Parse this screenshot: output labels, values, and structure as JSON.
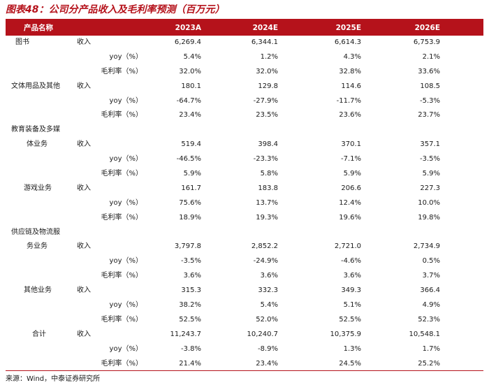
{
  "title": "图表48：公司分产品收入及毛利率预测（百万元）",
  "source": "来源：Wind，中泰证券研究所",
  "header": {
    "name": "产品名称",
    "years": [
      "2023A",
      "2024E",
      "2025E",
      "2026E"
    ]
  },
  "rows": [
    {
      "product": "图书",
      "metric": "收入",
      "values": [
        "6,269.4",
        "6,344.1",
        "6,614.3",
        "6,753.9"
      ]
    },
    {
      "product": "",
      "metric": "yoy（%）",
      "values": [
        "5.4%",
        "1.2%",
        "4.3%",
        "2.1%"
      ]
    },
    {
      "product": "",
      "metric": "毛利率（%）",
      "values": [
        "32.0%",
        "32.0%",
        "32.8%",
        "33.6%"
      ]
    },
    {
      "product": "文体用品及其他",
      "metric": "收入",
      "values": [
        "180.1",
        "129.8",
        "114.6",
        "108.5"
      ]
    },
    {
      "product": "",
      "metric": "yoy（%）",
      "values": [
        "-64.7%",
        "-27.9%",
        "-11.7%",
        "-5.3%"
      ]
    },
    {
      "product": "",
      "metric": "毛利率（%）",
      "values": [
        "23.4%",
        "23.5%",
        "23.6%",
        "23.7%"
      ]
    },
    {
      "product": "教育装备及多媒",
      "metric": "",
      "values": [
        "",
        "",
        "",
        ""
      ]
    },
    {
      "product": "体业务",
      "metric": "收入",
      "values": [
        "519.4",
        "398.4",
        "370.1",
        "357.1"
      ]
    },
    {
      "product": "",
      "metric": "yoy（%）",
      "values": [
        "-46.5%",
        "-23.3%",
        "-7.1%",
        "-3.5%"
      ]
    },
    {
      "product": "",
      "metric": "毛利率（%）",
      "values": [
        "5.9%",
        "5.8%",
        "5.9%",
        "5.9%"
      ]
    },
    {
      "product": "游戏业务",
      "metric": "收入",
      "values": [
        "161.7",
        "183.8",
        "206.6",
        "227.3"
      ]
    },
    {
      "product": "",
      "metric": "yoy（%）",
      "values": [
        "75.6%",
        "13.7%",
        "12.4%",
        "10.0%"
      ]
    },
    {
      "product": "",
      "metric": "毛利率（%）",
      "values": [
        "18.9%",
        "19.3%",
        "19.6%",
        "19.8%"
      ]
    },
    {
      "product": "供应链及物流服",
      "metric": "",
      "values": [
        "",
        "",
        "",
        ""
      ]
    },
    {
      "product": "务业务",
      "metric": "收入",
      "values": [
        "3,797.8",
        "2,852.2",
        "2,721.0",
        "2,734.9"
      ]
    },
    {
      "product": "",
      "metric": "yoy（%）",
      "values": [
        "-3.5%",
        "-24.9%",
        "-4.6%",
        "0.5%"
      ]
    },
    {
      "product": "",
      "metric": "毛利率（%）",
      "values": [
        "3.6%",
        "3.6%",
        "3.6%",
        "3.7%"
      ]
    },
    {
      "product": "其他业务",
      "metric": "收入",
      "values": [
        "315.3",
        "332.3",
        "349.3",
        "366.4"
      ]
    },
    {
      "product": "",
      "metric": "yoy（%）",
      "values": [
        "38.2%",
        "5.4%",
        "5.1%",
        "4.9%"
      ]
    },
    {
      "product": "",
      "metric": "毛利率（%）",
      "values": [
        "52.5%",
        "52.0%",
        "52.5%",
        "52.3%"
      ]
    },
    {
      "product": "合计",
      "metric": "收入",
      "values": [
        "11,243.7",
        "10,240.7",
        "10,375.9",
        "10,548.1"
      ]
    },
    {
      "product": "",
      "metric": "yoy（%）",
      "values": [
        "-3.8%",
        "-8.9%",
        "1.3%",
        "1.7%"
      ]
    },
    {
      "product": "",
      "metric": "毛利率（%）",
      "values": [
        "21.4%",
        "23.4%",
        "24.5%",
        "25.2%"
      ]
    }
  ]
}
